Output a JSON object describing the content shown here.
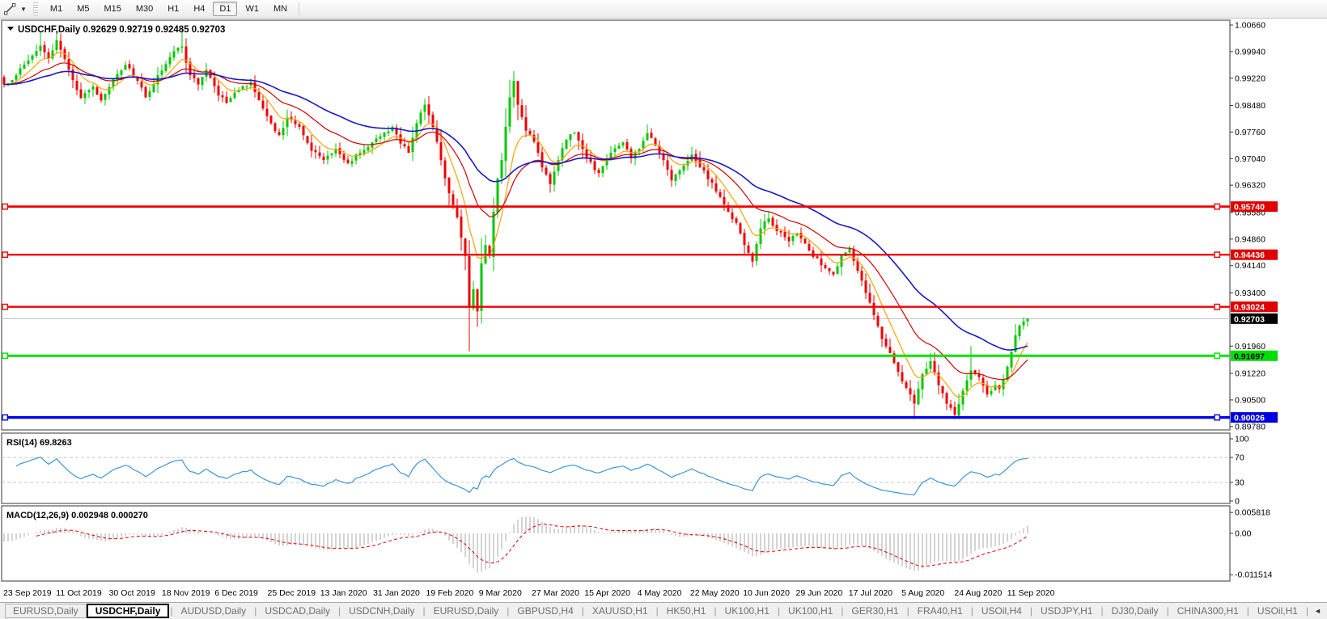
{
  "toolbar": {
    "cursor_tool": "cursor-crosshair-tool",
    "timeframes": [
      "M1",
      "M5",
      "M15",
      "M30",
      "H1",
      "H4",
      "D1",
      "W1",
      "MN"
    ],
    "active_timeframe": "D1"
  },
  "chart": {
    "title_text": "USDCHF,Daily  0.92629 0.92719 0.92485 0.92703",
    "symbol": "USDCHF,Daily",
    "price_axis_ticks": [
      "1.00660",
      "0.99940",
      "0.99220",
      "0.98480",
      "0.97760",
      "0.97040",
      "0.96320",
      "0.95580",
      "0.94860",
      "0.94140",
      "0.93400",
      "0.91960",
      "0.91220",
      "0.90500",
      "0.89780"
    ],
    "date_axis_labels": [
      "23 Sep 2019",
      "11 Oct 2019",
      "30 Oct 2019",
      "18 Nov 2019",
      "6 Dec 2019",
      "25 Dec 2019",
      "13 Jan 2020",
      "31 Jan 2020",
      "19 Feb 2020",
      "9 Mar 2020",
      "27 Mar 2020",
      "15 Apr 2020",
      "4 May 2020",
      "22 May 2020",
      "10 Jun 2020",
      "29 Jun 2020",
      "17 Jul 2020",
      "5 Aug 2020",
      "24 Aug 2020",
      "11 Sep 2020"
    ],
    "current_price": {
      "value": 0.92703,
      "label": "0.92703",
      "line_color": "#bdbdbd",
      "badge_bg": "#000000",
      "badge_fg": "#ffffff"
    }
  },
  "chart_data": {
    "type": "candlestick",
    "symbol": "USDCHF",
    "timeframe": "Daily",
    "price_range": [
      0.8978,
      1.0066
    ],
    "last_candle": {
      "open": 0.92629,
      "high": 0.92719,
      "low": 0.92485,
      "close": 0.92703
    },
    "candle_count": 254,
    "up_color": "#00c800",
    "down_color": "#f00000",
    "close_waypoints": [
      [
        0,
        0.9905
      ],
      [
        3,
        0.993
      ],
      [
        6,
        0.997
      ],
      [
        9,
        1.001
      ],
      [
        11,
        0.9975
      ],
      [
        13,
        1.0025
      ],
      [
        16,
        0.9945
      ],
      [
        19,
        0.9868
      ],
      [
        22,
        0.99
      ],
      [
        24,
        0.9862
      ],
      [
        27,
        0.992
      ],
      [
        30,
        0.9958
      ],
      [
        33,
        0.9915
      ],
      [
        35,
        0.987
      ],
      [
        38,
        0.993
      ],
      [
        42,
        0.9995
      ],
      [
        44,
        1.0008
      ],
      [
        46,
        0.993
      ],
      [
        48,
        0.9905
      ],
      [
        50,
        0.9945
      ],
      [
        53,
        0.9875
      ],
      [
        55,
        0.9855
      ],
      [
        58,
        0.989
      ],
      [
        61,
        0.9912
      ],
      [
        64,
        0.984
      ],
      [
        66,
        0.98
      ],
      [
        68,
        0.9768
      ],
      [
        70,
        0.9815
      ],
      [
        73,
        0.979
      ],
      [
        76,
        0.9725
      ],
      [
        79,
        0.97
      ],
      [
        82,
        0.973
      ],
      [
        85,
        0.9692
      ],
      [
        88,
        0.972
      ],
      [
        91,
        0.9748
      ],
      [
        94,
        0.9775
      ],
      [
        96,
        0.979
      ],
      [
        98,
        0.9745
      ],
      [
        100,
        0.972
      ],
      [
        102,
        0.98
      ],
      [
        104,
        0.985
      ],
      [
        106,
        0.979
      ],
      [
        108,
        0.97
      ],
      [
        110,
        0.961
      ],
      [
        112,
        0.9545
      ],
      [
        113,
        0.949
      ],
      [
        114,
        0.944
      ],
      [
        115,
        0.93
      ],
      [
        116,
        0.935
      ],
      [
        117,
        0.929
      ],
      [
        118,
        0.942
      ],
      [
        119,
        0.947
      ],
      [
        120,
        0.944
      ],
      [
        121,
        0.956
      ],
      [
        122,
        0.965
      ],
      [
        123,
        0.97
      ],
      [
        124,
        0.979
      ],
      [
        125,
        0.987
      ],
      [
        126,
        0.9915
      ],
      [
        127,
        0.985
      ],
      [
        129,
        0.978
      ],
      [
        131,
        0.975
      ],
      [
        133,
        0.968
      ],
      [
        135,
        0.9635
      ],
      [
        137,
        0.97
      ],
      [
        139,
        0.9755
      ],
      [
        141,
        0.9775
      ],
      [
        143,
        0.973
      ],
      [
        144,
        0.9705
      ],
      [
        147,
        0.9665
      ],
      [
        150,
        0.972
      ],
      [
        153,
        0.9748
      ],
      [
        155,
        0.9705
      ],
      [
        157,
        0.973
      ],
      [
        159,
        0.9773
      ],
      [
        161,
        0.974
      ],
      [
        163,
        0.97
      ],
      [
        165,
        0.9645
      ],
      [
        168,
        0.9685
      ],
      [
        170,
        0.9715
      ],
      [
        173,
        0.9672
      ],
      [
        176,
        0.9615
      ],
      [
        179,
        0.956
      ],
      [
        181,
        0.953
      ],
      [
        183,
        0.947
      ],
      [
        185,
        0.9425
      ],
      [
        187,
        0.9515
      ],
      [
        189,
        0.9542
      ],
      [
        191,
        0.9508
      ],
      [
        194,
        0.948
      ],
      [
        196,
        0.9502
      ],
      [
        199,
        0.9455
      ],
      [
        202,
        0.9415
      ],
      [
        205,
        0.939
      ],
      [
        207,
        0.9442
      ],
      [
        209,
        0.946
      ],
      [
        211,
        0.94
      ],
      [
        213,
        0.934
      ],
      [
        215,
        0.928
      ],
      [
        217,
        0.9215
      ],
      [
        220,
        0.915
      ],
      [
        222,
        0.91
      ],
      [
        225,
        0.904
      ],
      [
        227,
        0.912
      ],
      [
        229,
        0.9155
      ],
      [
        231,
        0.909
      ],
      [
        233,
        0.904
      ],
      [
        235,
        0.901
      ],
      [
        237,
        0.9075
      ],
      [
        239,
        0.913
      ],
      [
        241,
        0.9112
      ],
      [
        243,
        0.9065
      ],
      [
        245,
        0.909
      ],
      [
        246,
        0.908
      ],
      [
        247,
        0.9105
      ],
      [
        248,
        0.914
      ],
      [
        249,
        0.918
      ],
      [
        250,
        0.9225
      ],
      [
        251,
        0.9252
      ],
      [
        252,
        0.92629
      ],
      [
        253,
        0.92703
      ]
    ],
    "wick_overrides": {
      "9": {
        "high": 1.0048
      },
      "44": {
        "high": 1.006
      },
      "115": {
        "low": 0.9182
      },
      "225": {
        "low": 0.8998
      },
      "235": {
        "low": 0.8998
      },
      "239": {
        "high": 0.9196
      }
    },
    "moving_averages": [
      {
        "name": "ma-fast",
        "period": 8,
        "color": "#ffa200",
        "width": 1.2
      },
      {
        "name": "ma-mid",
        "period": 21,
        "color": "#d40000",
        "width": 1.2
      },
      {
        "name": "ma-slow",
        "period": 45,
        "color": "#1818c8",
        "width": 1.6
      }
    ],
    "horizontal_levels": [
      {
        "value": 0.9574,
        "label": "0.95740",
        "color": "#f20000",
        "width": 2.8,
        "badge_bg": "#e00000",
        "badge_fg": "#ffffff"
      },
      {
        "value": 0.94436,
        "label": "0.94436",
        "color": "#f20000",
        "width": 2.4,
        "badge_bg": "#e00000",
        "badge_fg": "#ffffff"
      },
      {
        "value": 0.93024,
        "label": "0.93024",
        "color": "#f20000",
        "width": 2.4,
        "badge_bg": "#e00000",
        "badge_fg": "#ffffff"
      },
      {
        "value": 0.91697,
        "label": "0.91697",
        "color": "#00e100",
        "width": 3,
        "badge_bg": "#00dd00",
        "badge_fg": "#000000"
      },
      {
        "value": 0.90026,
        "label": "0.90026",
        "color": "#0000f0",
        "width": 3.4,
        "badge_bg": "#0000e0",
        "badge_fg": "#ffffff"
      }
    ],
    "indicators": {
      "rsi": {
        "label_text": "RSI(14) 69.8263",
        "period": 14,
        "current_value": 69.8263,
        "range": [
          0,
          100
        ],
        "axis_ticks": [
          "100",
          "70",
          "30",
          "0"
        ],
        "level_lines": [
          70,
          30
        ],
        "line_color": "#3c96d7",
        "level_color": "#c8c8c8"
      },
      "macd": {
        "label_text": "MACD(12,26,9) 0.002948 0.000270",
        "fast": 12,
        "slow": 26,
        "signal": 9,
        "main_value": 0.002948,
        "signal_value": 0.00027,
        "axis_ticks": [
          "0.005818",
          "0.00",
          "-0.011514"
        ],
        "axis_tick_values": [
          0.005818,
          0,
          -0.011514
        ],
        "hist_color": "#a8a8a8",
        "signal_color": "#e00000"
      }
    }
  },
  "tabs": {
    "items": [
      {
        "label": "EURUSD,Daily",
        "active": false
      },
      {
        "label": "USDCHF,Daily",
        "active": true
      },
      {
        "label": "AUDUSD,Daily",
        "active": false
      },
      {
        "label": "USDCAD,Daily",
        "active": false
      },
      {
        "label": "USDCNH,Daily",
        "active": false
      },
      {
        "label": "EURUSD,Daily",
        "active": false
      },
      {
        "label": "GBPUSD,H4",
        "active": false
      },
      {
        "label": "XAUUSD,H1",
        "active": false
      },
      {
        "label": "HK50,H1",
        "active": false
      },
      {
        "label": "UK100,H1",
        "active": false
      },
      {
        "label": "UK100,H1",
        "active": false
      },
      {
        "label": "GER30,H1",
        "active": false
      },
      {
        "label": "FRA40,H1",
        "active": false
      },
      {
        "label": "USOil,H4",
        "active": false
      },
      {
        "label": "USDJPY,H1",
        "active": false
      },
      {
        "label": "DJ30,Daily",
        "active": false
      },
      {
        "label": "CHINA300,H1",
        "active": false
      },
      {
        "label": "USOil,H1",
        "active": false
      }
    ],
    "scroll_left": "◄",
    "scroll_right": "►"
  }
}
